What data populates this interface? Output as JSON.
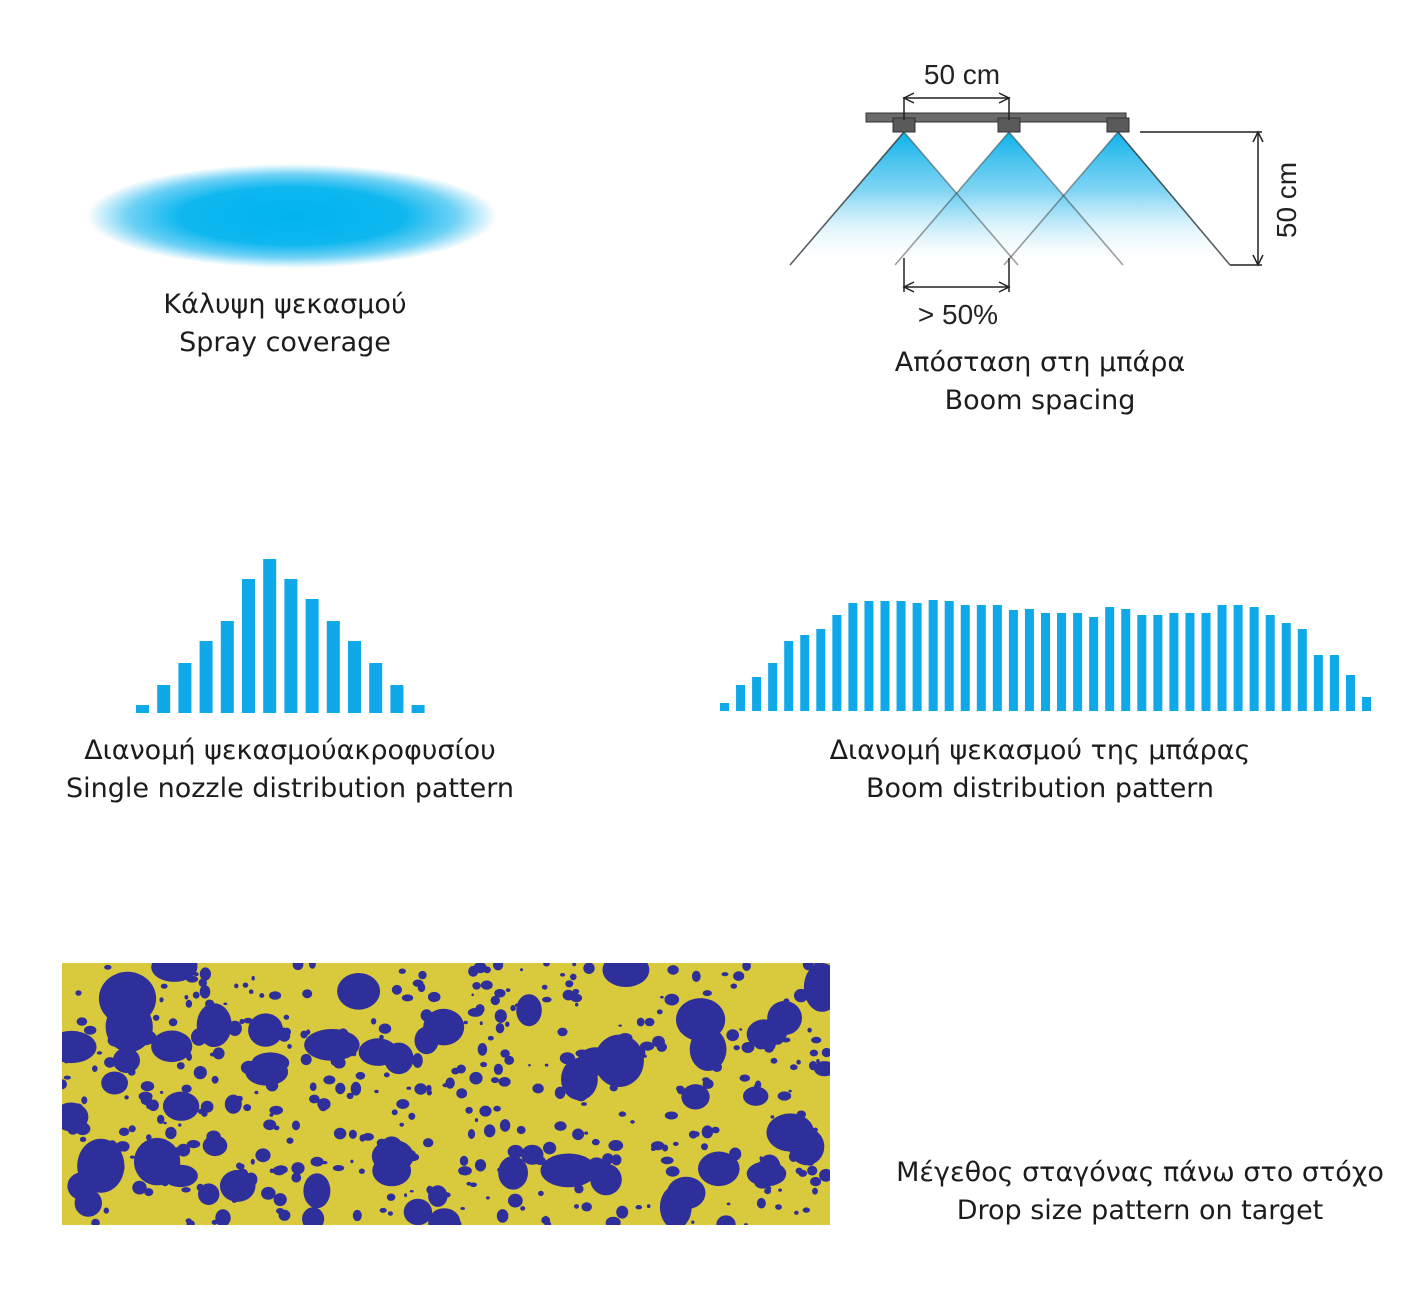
{
  "colors": {
    "spray": "#00b4ef",
    "bar": "#0fa8e8",
    "target_bg": "#d8c83a",
    "droplet": "#2f2f9c",
    "boom": "#5a5a5a"
  },
  "coverage": {
    "caption_el": "Κάλυψη ψεκασμού",
    "caption_en": "Spray coverage"
  },
  "boom": {
    "spacing_label": "50 cm",
    "height_label": "50 cm",
    "overlap_label": "> 50%",
    "caption_el": "Απόσταση στη μπάρα",
    "caption_en": "Boom spacing"
  },
  "single": {
    "caption_el": "Διανομή ψεκασμούακροφυσίου",
    "caption_en": "Single nozzle distribution pattern",
    "values": [
      8,
      28,
      50,
      72,
      92,
      134,
      154,
      134,
      114,
      92,
      72,
      50,
      28,
      8
    ]
  },
  "boomdist": {
    "caption_el": "Διανομή ψεκασμού της μπάρας",
    "caption_en": "Boom distribution pattern",
    "values": [
      8,
      26,
      34,
      48,
      70,
      76,
      82,
      96,
      108,
      110,
      110,
      110,
      108,
      111,
      110,
      106,
      106,
      106,
      101,
      102,
      98,
      98,
      98,
      94,
      104,
      102,
      96,
      96,
      98,
      98,
      98,
      106,
      106,
      104,
      96,
      88,
      82,
      56,
      56,
      36,
      14
    ]
  },
  "drop": {
    "caption_el": "Μέγεθος σταγόνας πάνω στο στόχο",
    "caption_en": "Drop size pattern on target"
  }
}
